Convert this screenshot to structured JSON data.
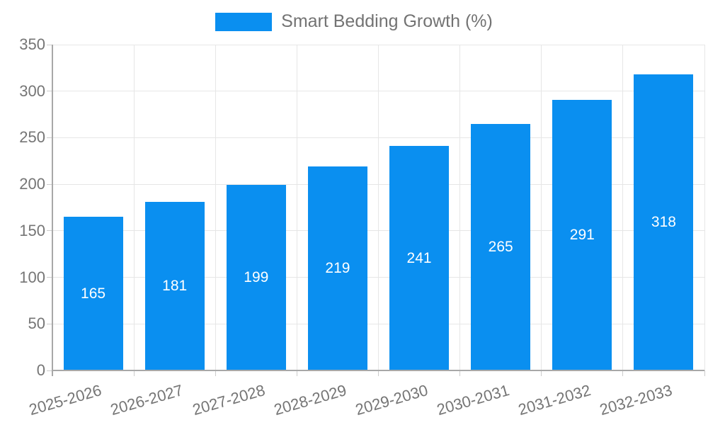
{
  "chart_data": {
    "type": "bar",
    "title": "",
    "legend": "Smart Bedding Growth (%)",
    "legend_position": "top-center",
    "categories": [
      "2025-2026",
      "2026-2027",
      "2027-2028",
      "2028-2029",
      "2029-2030",
      "2030-2031",
      "2031-2032",
      "2032-2033"
    ],
    "series": [
      {
        "name": "Smart Bedding Growth (%)",
        "values": [
          165,
          181,
          199,
          219,
          241,
          265,
          291,
          318
        ]
      }
    ],
    "value_labels": {
      "visible": true,
      "position": "inside-center",
      "values": [
        "165",
        "181",
        "199",
        "219",
        "241",
        "265",
        "291",
        "318"
      ]
    },
    "xlabel": "",
    "ylabel": "",
    "ylim": [
      0,
      350
    ],
    "yticks": [
      0,
      50,
      100,
      150,
      200,
      250,
      300,
      350
    ],
    "grid": "horizontal-and-vertical",
    "x_label_rotation_deg": -16,
    "colors": {
      "bar": "#0a8ff0",
      "grid": "#e6e6e6",
      "axis": "#a8a8a8",
      "tick": "#cccccc",
      "label_text": "#757575",
      "value_text": "#ffffff",
      "legend_text": "#737373",
      "background": "#ffffff"
    }
  }
}
